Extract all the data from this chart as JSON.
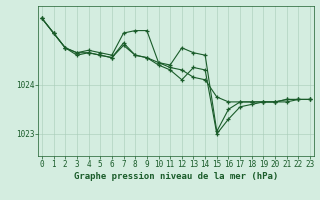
{
  "title": "Graphe pression niveau de la mer (hPa)",
  "background_color": "#d4ede0",
  "line_color": "#1a5c2a",
  "grid_color": "#a8cbb8",
  "x_ticks": [
    0,
    1,
    2,
    3,
    4,
    5,
    6,
    7,
    8,
    9,
    10,
    11,
    12,
    13,
    14,
    15,
    16,
    17,
    18,
    19,
    20,
    21,
    22,
    23
  ],
  "y_ticks": [
    1023,
    1024
  ],
  "xlim": [
    -0.3,
    23.3
  ],
  "ylim": [
    1022.55,
    1025.6
  ],
  "series": [
    [
      1025.35,
      1025.05,
      1024.75,
      1024.6,
      1024.65,
      1024.6,
      1024.55,
      1024.8,
      1024.6,
      1024.55,
      1024.45,
      1024.35,
      1024.3,
      1024.15,
      1024.1,
      1023.75,
      1023.65,
      1023.65,
      1023.65,
      1023.65,
      1023.65,
      1023.7,
      1023.7,
      1023.7
    ],
    [
      1025.35,
      1025.05,
      1024.75,
      1024.65,
      1024.7,
      1024.65,
      1024.6,
      1025.05,
      1025.1,
      1025.1,
      1024.45,
      1024.4,
      1024.75,
      1024.65,
      1024.6,
      1023.05,
      1023.5,
      1023.65,
      1023.65,
      1023.65,
      1023.65,
      1023.7,
      1023.7,
      1023.7
    ],
    [
      1025.35,
      1025.05,
      1024.75,
      1024.65,
      1024.65,
      1024.6,
      1024.55,
      1024.85,
      1024.6,
      1024.55,
      1024.4,
      1024.3,
      1024.1,
      1024.35,
      1024.3,
      1023.0,
      1023.3,
      1023.55,
      1023.6,
      1023.65,
      1023.65,
      1023.65,
      1023.7,
      1023.7
    ]
  ],
  "tick_fontsize": 5.5,
  "xlabel_fontsize": 6.5
}
